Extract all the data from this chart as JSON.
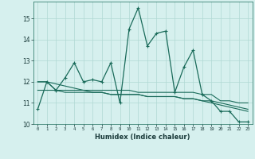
{
  "x": [
    0,
    1,
    2,
    3,
    4,
    5,
    6,
    7,
    8,
    9,
    10,
    11,
    12,
    13,
    14,
    15,
    16,
    17,
    18,
    19,
    20,
    21,
    22,
    23
  ],
  "y_main": [
    10.7,
    12.0,
    11.6,
    12.2,
    12.9,
    12.0,
    12.1,
    12.0,
    12.9,
    11.0,
    14.5,
    15.5,
    13.7,
    14.3,
    14.4,
    11.5,
    12.7,
    13.5,
    11.4,
    11.1,
    10.6,
    10.6,
    10.1,
    10.1
  ],
  "y_trend1": [
    12.0,
    12.0,
    11.6,
    11.6,
    11.6,
    11.6,
    11.6,
    11.6,
    11.6,
    11.6,
    11.6,
    11.5,
    11.5,
    11.5,
    11.5,
    11.5,
    11.5,
    11.5,
    11.4,
    11.4,
    11.1,
    11.1,
    11.0,
    11.0
  ],
  "y_trend2": [
    12.0,
    12.0,
    11.9,
    11.8,
    11.7,
    11.6,
    11.5,
    11.5,
    11.4,
    11.4,
    11.4,
    11.4,
    11.3,
    11.3,
    11.3,
    11.3,
    11.2,
    11.2,
    11.1,
    11.1,
    11.0,
    10.9,
    10.8,
    10.7
  ],
  "y_trend3": [
    11.6,
    11.6,
    11.6,
    11.5,
    11.5,
    11.5,
    11.5,
    11.5,
    11.4,
    11.4,
    11.4,
    11.4,
    11.3,
    11.3,
    11.3,
    11.3,
    11.2,
    11.2,
    11.1,
    11.0,
    10.9,
    10.8,
    10.7,
    10.6
  ],
  "line_color": "#1a6b5a",
  "bg_color": "#d6f0ee",
  "grid_color": "#b0d8d4",
  "xlabel": "Humidex (Indice chaleur)",
  "ylim": [
    10,
    15.8
  ],
  "xlim": [
    -0.5,
    23.5
  ],
  "yticks": [
    10,
    11,
    12,
    13,
    14,
    15
  ],
  "xticks": [
    0,
    1,
    2,
    3,
    4,
    5,
    6,
    7,
    8,
    9,
    10,
    11,
    12,
    13,
    14,
    15,
    16,
    17,
    18,
    19,
    20,
    21,
    22,
    23
  ]
}
